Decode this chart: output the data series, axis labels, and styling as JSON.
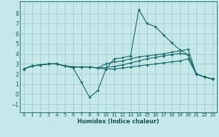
{
  "xlabel": "Humidex (Indice chaleur)",
  "background_color": "#c5e8e8",
  "grid_color": "#a8d0d0",
  "line_color": "#1a6868",
  "xlim": [
    -0.5,
    23.5
  ],
  "ylim": [
    -1.8,
    9.2
  ],
  "xticks": [
    0,
    1,
    2,
    3,
    4,
    5,
    6,
    7,
    8,
    9,
    10,
    11,
    12,
    13,
    14,
    15,
    16,
    17,
    18,
    19,
    20,
    21,
    22,
    23
  ],
  "yticks": [
    -1,
    0,
    1,
    2,
    3,
    4,
    5,
    6,
    7,
    8
  ],
  "line1_x": [
    0,
    1,
    2,
    3,
    4,
    5,
    6,
    7,
    8,
    9,
    10,
    11,
    12,
    13,
    14,
    15,
    16,
    17,
    18,
    19,
    20,
    21,
    22,
    23
  ],
  "line1_y": [
    2.5,
    2.8,
    2.9,
    3.0,
    3.0,
    2.8,
    2.6,
    1.2,
    -0.3,
    0.35,
    2.5,
    3.5,
    3.6,
    3.8,
    8.4,
    7.0,
    6.7,
    5.9,
    5.1,
    4.4,
    3.9,
    2.0,
    1.7,
    1.5
  ],
  "line2_x": [
    0,
    1,
    2,
    3,
    4,
    5,
    6,
    7,
    8,
    9,
    10,
    11,
    12,
    13,
    14,
    15,
    16,
    17,
    18,
    19,
    20,
    21,
    22,
    23
  ],
  "line2_y": [
    2.5,
    2.8,
    2.9,
    3.0,
    3.0,
    2.8,
    2.7,
    2.7,
    2.7,
    2.6,
    3.0,
    3.2,
    3.3,
    3.5,
    3.7,
    3.8,
    3.9,
    4.0,
    4.15,
    4.3,
    4.45,
    2.0,
    1.7,
    1.5
  ],
  "line3_x": [
    0,
    1,
    2,
    3,
    4,
    5,
    6,
    7,
    8,
    9,
    10,
    11,
    12,
    13,
    14,
    15,
    16,
    17,
    18,
    19,
    20,
    21,
    22,
    23
  ],
  "line3_y": [
    2.5,
    2.8,
    2.9,
    3.0,
    3.0,
    2.8,
    2.7,
    2.7,
    2.7,
    2.6,
    2.65,
    2.75,
    2.9,
    3.1,
    3.3,
    3.5,
    3.65,
    3.8,
    3.92,
    4.05,
    3.9,
    2.0,
    1.7,
    1.5
  ],
  "line4_x": [
    0,
    1,
    2,
    3,
    4,
    5,
    6,
    7,
    8,
    9,
    10,
    11,
    12,
    13,
    14,
    15,
    16,
    17,
    18,
    19,
    20,
    21,
    22,
    23
  ],
  "line4_y": [
    2.5,
    2.8,
    2.9,
    3.0,
    3.0,
    2.8,
    2.7,
    2.7,
    2.7,
    2.6,
    2.5,
    2.5,
    2.6,
    2.7,
    2.8,
    2.9,
    3.0,
    3.1,
    3.2,
    3.3,
    3.5,
    2.0,
    1.7,
    1.5
  ]
}
